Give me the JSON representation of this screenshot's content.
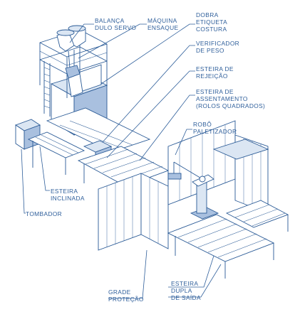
{
  "colors": {
    "ink": "#2a5a96",
    "labels": "#2f5f9b",
    "background": "#ffffff"
  },
  "labels": {
    "balanca": [
      "BALANÇA",
      "DULO SERVO"
    ],
    "maquina": [
      "MÁQUINA",
      "ENSAQUE"
    ],
    "dobra": [
      "DOBRA",
      "ETIQUETA",
      "COSTURA"
    ],
    "verificador": [
      "VERIFICADOR",
      "DE PESO"
    ],
    "esteira_rejeicao": [
      "ESTEIRA DE",
      "REJEIÇÃO"
    ],
    "esteira_assentamento": [
      "ESTEIRA DE",
      "ASSENTAMENTO",
      "(ROLOS QUADRADOS)"
    ],
    "robo": [
      "ROBÔ",
      "PALETIZADOR"
    ],
    "esteira_inclinada": [
      "ESTEIRA",
      "INCLINADA"
    ],
    "tombador": [
      "TOMBADOR"
    ],
    "grade": [
      "GRADE",
      "PROTEÇÃO"
    ],
    "esteira_dupla": [
      "ESTEIRA",
      "DUPLA",
      "DE SAÍDA"
    ]
  }
}
